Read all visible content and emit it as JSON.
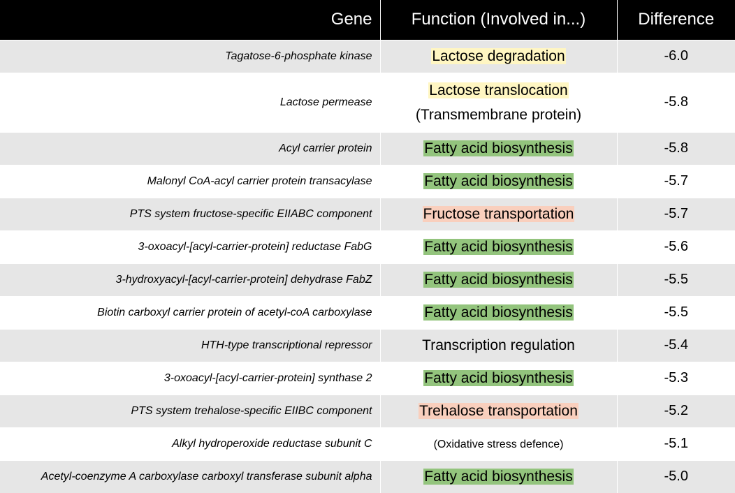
{
  "header": {
    "gene": "Gene",
    "function": "Function (Involved in...)",
    "difference": "Difference"
  },
  "rows": [
    {
      "gene": "Tagatose-6-phosphate kinase",
      "function": "Lactose degradation",
      "function_line2": "",
      "difference": "-6.0"
    },
    {
      "gene": "Lactose permease",
      "function": "Lactose translocation",
      "function_line2": "(Transmembrane protein)",
      "difference": "-5.8"
    },
    {
      "gene": "Acyl carrier protein",
      "function": "Fatty acid biosynthesis",
      "function_line2": "",
      "difference": "-5.8"
    },
    {
      "gene": "Malonyl CoA-acyl carrier protein transacylase",
      "function": "Fatty acid biosynthesis",
      "function_line2": "",
      "difference": "-5.7"
    },
    {
      "gene": "PTS system fructose-specific EIIABC component",
      "function": "Fructose transportation",
      "function_line2": "",
      "difference": "-5.7"
    },
    {
      "gene": "3-oxoacyl-[acyl-carrier-protein] reductase FabG",
      "function": "Fatty acid biosynthesis",
      "function_line2": "",
      "difference": "-5.6"
    },
    {
      "gene": "3-hydroxyacyl-[acyl-carrier-protein] dehydrase FabZ",
      "function": "Fatty acid biosynthesis",
      "function_line2": "",
      "difference": "-5.5"
    },
    {
      "gene": "Biotin carboxyl carrier protein of acetyl-coA carboxylase",
      "function": "Fatty acid biosynthesis",
      "function_line2": "",
      "difference": "-5.5"
    },
    {
      "gene": "HTH-type transcriptional repressor",
      "function": "Transcription regulation",
      "function_line2": "",
      "difference": "-5.4"
    },
    {
      "gene": "3-oxoacyl-[acyl-carrier-protein] synthase 2",
      "function": "Fatty acid biosynthesis",
      "function_line2": "",
      "difference": "-5.3"
    },
    {
      "gene": "PTS system trehalose-specific EIIBC component",
      "function": "Trehalose transportation",
      "function_line2": "",
      "difference": "-5.2"
    },
    {
      "gene": "Alkyl hydroperoxide reductase subunit C",
      "function": "(Oxidative stress defence)",
      "function_line2": "",
      "difference": "-5.1"
    },
    {
      "gene": "Acetyl-coenzyme A carboxylase carboxyl transferase subunit alpha",
      "function": "Fatty acid biosynthesis",
      "function_line2": "",
      "difference": "-5.0"
    }
  ],
  "colors": {
    "header_bg": "#000000",
    "row_alt_bg": "#e6e6e6",
    "lactose_highlight": "#fff6c2",
    "fatty_acid_highlight": "#93c47d",
    "transport_highlight": "#f9cfbd"
  }
}
